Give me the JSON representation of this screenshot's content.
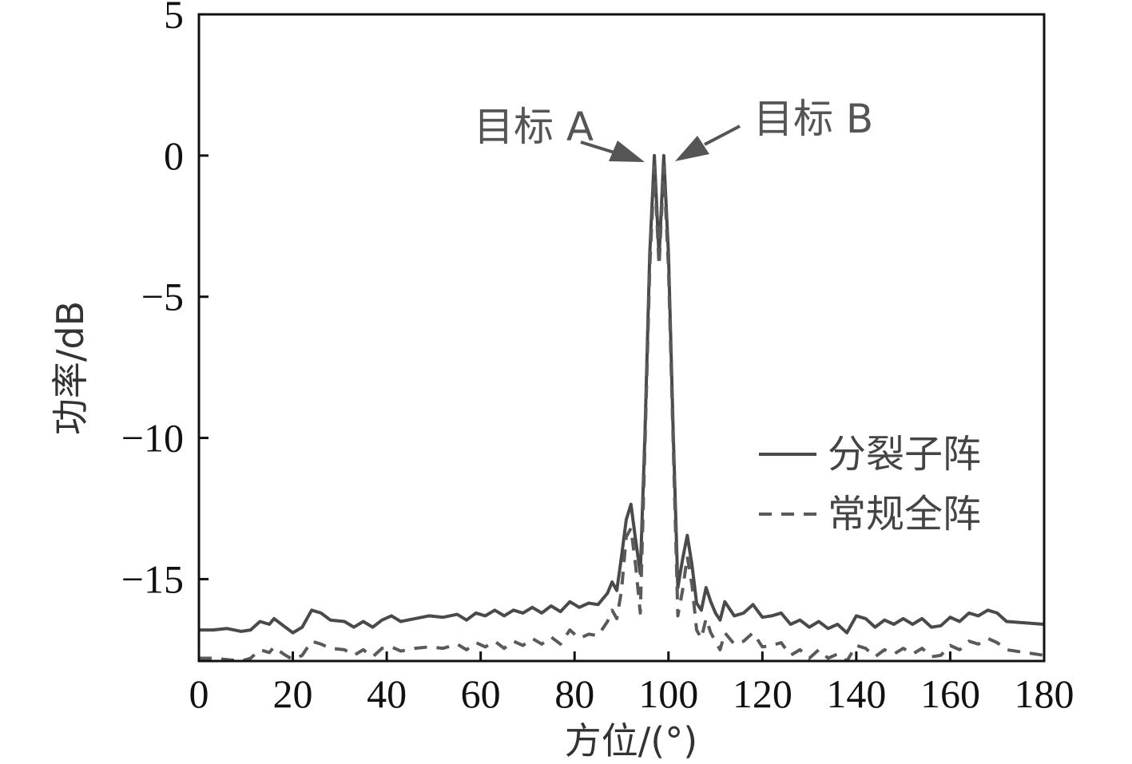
{
  "chart_data": {
    "type": "line",
    "xlabel": "方位/(°)",
    "ylabel": "功率/dB",
    "xlim": [
      0,
      180
    ],
    "ylim": [
      -17.9,
      5
    ],
    "xticks": [
      0,
      20,
      40,
      60,
      80,
      100,
      120,
      140,
      160,
      180
    ],
    "yticks": [
      5,
      0,
      -5,
      -10,
      -15
    ],
    "ytick_labels": [
      "5",
      "0",
      "−5",
      "−10",
      "−15"
    ],
    "grid": false,
    "legend_position": "right",
    "colors": {
      "solid": "#4a4a4a",
      "dashed": "#5a5a5a",
      "axis": "#111111",
      "annotation": "#555555"
    },
    "series": [
      {
        "name": "分裂子阵",
        "style": "solid",
        "points": [
          [
            0,
            -16.8
          ],
          [
            3,
            -16.8
          ],
          [
            6,
            -16.75
          ],
          [
            9,
            -16.85
          ],
          [
            11,
            -16.8
          ],
          [
            13,
            -16.5
          ],
          [
            15,
            -16.6
          ],
          [
            16,
            -16.4
          ],
          [
            18,
            -16.65
          ],
          [
            20,
            -16.9
          ],
          [
            22,
            -16.7
          ],
          [
            24,
            -16.1
          ],
          [
            26,
            -16.2
          ],
          [
            28,
            -16.45
          ],
          [
            31,
            -16.5
          ],
          [
            33,
            -16.7
          ],
          [
            35,
            -16.5
          ],
          [
            37,
            -16.7
          ],
          [
            39,
            -16.45
          ],
          [
            41,
            -16.3
          ],
          [
            43,
            -16.5
          ],
          [
            46,
            -16.4
          ],
          [
            49,
            -16.3
          ],
          [
            52,
            -16.35
          ],
          [
            55,
            -16.25
          ],
          [
            57,
            -16.45
          ],
          [
            59,
            -16.2
          ],
          [
            61,
            -16.3
          ],
          [
            63,
            -16.1
          ],
          [
            65,
            -16.3
          ],
          [
            67,
            -16.1
          ],
          [
            69,
            -16.2
          ],
          [
            71,
            -16.0
          ],
          [
            73,
            -16.2
          ],
          [
            75,
            -15.95
          ],
          [
            77,
            -16.15
          ],
          [
            79,
            -15.8
          ],
          [
            81,
            -16.0
          ],
          [
            83,
            -15.85
          ],
          [
            85,
            -15.9
          ],
          [
            87,
            -15.5
          ],
          [
            88,
            -15.1
          ],
          [
            89,
            -15.4
          ],
          [
            90,
            -14.2
          ],
          [
            91,
            -12.9
          ],
          [
            92,
            -12.35
          ],
          [
            93,
            -13.6
          ],
          [
            94,
            -14.8
          ],
          [
            95,
            -9.8
          ],
          [
            96,
            -3.5
          ],
          [
            97,
            0.0
          ],
          [
            98,
            -3.6
          ],
          [
            99,
            0.0
          ],
          [
            100,
            -3.5
          ],
          [
            101,
            -9.8
          ],
          [
            102,
            -15.3
          ],
          [
            103,
            -14.3
          ],
          [
            104,
            -13.45
          ],
          [
            105,
            -14.5
          ],
          [
            106,
            -15.85
          ],
          [
            107,
            -16.1
          ],
          [
            108,
            -15.3
          ],
          [
            109,
            -15.8
          ],
          [
            110,
            -16.2
          ],
          [
            111,
            -16.45
          ],
          [
            112,
            -15.8
          ],
          [
            114,
            -16.3
          ],
          [
            116,
            -16.2
          ],
          [
            118,
            -15.9
          ],
          [
            120,
            -16.35
          ],
          [
            122,
            -16.3
          ],
          [
            124,
            -16.2
          ],
          [
            126,
            -16.6
          ],
          [
            128,
            -16.45
          ],
          [
            130,
            -16.7
          ],
          [
            132,
            -16.5
          ],
          [
            134,
            -16.75
          ],
          [
            136,
            -16.6
          ],
          [
            138,
            -16.9
          ],
          [
            140,
            -16.3
          ],
          [
            142,
            -16.4
          ],
          [
            144,
            -16.7
          ],
          [
            146,
            -16.45
          ],
          [
            148,
            -16.6
          ],
          [
            150,
            -16.4
          ],
          [
            152,
            -16.6
          ],
          [
            154,
            -16.4
          ],
          [
            156,
            -16.7
          ],
          [
            158,
            -16.65
          ],
          [
            160,
            -16.35
          ],
          [
            162,
            -16.5
          ],
          [
            164,
            -16.2
          ],
          [
            166,
            -16.3
          ],
          [
            168,
            -16.1
          ],
          [
            170,
            -16.2
          ],
          [
            172,
            -16.5
          ],
          [
            176,
            -16.55
          ],
          [
            180,
            -16.6
          ]
        ]
      },
      {
        "name": "常规全阵",
        "style": "dashed",
        "points": [
          [
            0,
            -17.8
          ],
          [
            3,
            -17.8
          ],
          [
            6,
            -17.85
          ],
          [
            9,
            -17.9
          ],
          [
            11,
            -17.8
          ],
          [
            13,
            -17.5
          ],
          [
            15,
            -17.6
          ],
          [
            16,
            -17.4
          ],
          [
            18,
            -17.65
          ],
          [
            20,
            -17.85
          ],
          [
            22,
            -17.7
          ],
          [
            24,
            -17.2
          ],
          [
            26,
            -17.3
          ],
          [
            28,
            -17.45
          ],
          [
            31,
            -17.5
          ],
          [
            33,
            -17.7
          ],
          [
            35,
            -17.5
          ],
          [
            37,
            -17.75
          ],
          [
            39,
            -17.45
          ],
          [
            41,
            -17.4
          ],
          [
            43,
            -17.55
          ],
          [
            46,
            -17.45
          ],
          [
            49,
            -17.4
          ],
          [
            52,
            -17.45
          ],
          [
            55,
            -17.3
          ],
          [
            57,
            -17.5
          ],
          [
            59,
            -17.25
          ],
          [
            61,
            -17.4
          ],
          [
            63,
            -17.2
          ],
          [
            65,
            -17.45
          ],
          [
            67,
            -17.2
          ],
          [
            69,
            -17.35
          ],
          [
            71,
            -17.1
          ],
          [
            73,
            -17.3
          ],
          [
            75,
            -17.05
          ],
          [
            77,
            -17.3
          ],
          [
            79,
            -16.8
          ],
          [
            81,
            -17.1
          ],
          [
            83,
            -16.95
          ],
          [
            85,
            -17.0
          ],
          [
            87,
            -16.5
          ],
          [
            88,
            -16.1
          ],
          [
            89,
            -16.4
          ],
          [
            90,
            -15.4
          ],
          [
            91,
            -13.5
          ],
          [
            92,
            -13.2
          ],
          [
            93,
            -14.5
          ],
          [
            94,
            -16.2
          ],
          [
            95,
            -10.2
          ],
          [
            96,
            -4.0
          ],
          [
            97,
            -0.4
          ],
          [
            98,
            -3.9
          ],
          [
            99,
            -0.4
          ],
          [
            100,
            -4.0
          ],
          [
            101,
            -10.2
          ],
          [
            102,
            -16.3
          ],
          [
            103,
            -15.4
          ],
          [
            104,
            -14.2
          ],
          [
            105,
            -15.2
          ],
          [
            106,
            -16.8
          ],
          [
            107,
            -17.1
          ],
          [
            108,
            -16.4
          ],
          [
            109,
            -16.9
          ],
          [
            110,
            -17.2
          ],
          [
            111,
            -17.5
          ],
          [
            112,
            -16.9
          ],
          [
            114,
            -17.3
          ],
          [
            116,
            -17.2
          ],
          [
            118,
            -16.9
          ],
          [
            120,
            -17.4
          ],
          [
            122,
            -17.35
          ],
          [
            124,
            -17.25
          ],
          [
            126,
            -17.7
          ],
          [
            128,
            -17.5
          ],
          [
            130,
            -17.8
          ],
          [
            132,
            -17.5
          ],
          [
            134,
            -17.8
          ],
          [
            136,
            -17.65
          ],
          [
            138,
            -17.9
          ],
          [
            140,
            -17.35
          ],
          [
            142,
            -17.45
          ],
          [
            144,
            -17.75
          ],
          [
            146,
            -17.5
          ],
          [
            148,
            -17.65
          ],
          [
            150,
            -17.45
          ],
          [
            152,
            -17.65
          ],
          [
            154,
            -17.45
          ],
          [
            156,
            -17.75
          ],
          [
            158,
            -17.7
          ],
          [
            160,
            -17.35
          ],
          [
            162,
            -17.5
          ],
          [
            164,
            -17.2
          ],
          [
            166,
            -17.3
          ],
          [
            168,
            -17.1
          ],
          [
            170,
            -17.25
          ],
          [
            172,
            -17.5
          ],
          [
            176,
            -17.6
          ],
          [
            180,
            -17.7
          ]
        ]
      }
    ],
    "annotations": [
      {
        "text": "目标 A",
        "target": [
          97,
          0
        ]
      },
      {
        "text": "目标 B",
        "target": [
          99,
          0
        ]
      }
    ]
  }
}
